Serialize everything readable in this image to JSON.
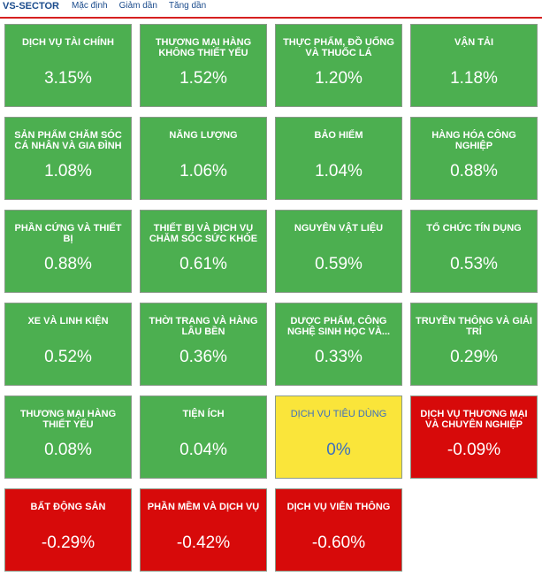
{
  "header": {
    "title": "VS-SECTOR",
    "tabs": [
      "Mặc định",
      "Giảm dần",
      "Tăng dần"
    ]
  },
  "colors": {
    "up": "#4caf50",
    "flat": "#fae53a",
    "down": "#d70a0a",
    "accent_line": "#d62020"
  },
  "sectors": [
    {
      "name": "DỊCH VỤ TÀI CHÍNH",
      "value": "3.15%",
      "status": "up"
    },
    {
      "name": "THƯƠNG MẠI HÀNG KHÔNG THIẾT YẾU",
      "value": "1.52%",
      "status": "up"
    },
    {
      "name": "THỰC PHẨM, ĐỒ UỐNG VÀ THUỐC LÁ",
      "value": "1.20%",
      "status": "up"
    },
    {
      "name": "VẬN TẢI",
      "value": "1.18%",
      "status": "up"
    },
    {
      "name": "SẢN PHẨM CHĂM SÓC CÁ NHÂN VÀ GIA ĐÌNH",
      "value": "1.08%",
      "status": "up"
    },
    {
      "name": "NĂNG LƯỢNG",
      "value": "1.06%",
      "status": "up"
    },
    {
      "name": "BẢO HIỂM",
      "value": "1.04%",
      "status": "up"
    },
    {
      "name": "HÀNG HÓA CÔNG NGHIỆP",
      "value": "0.88%",
      "status": "up"
    },
    {
      "name": "PHẦN CỨNG VÀ THIẾT BỊ",
      "value": "0.88%",
      "status": "up"
    },
    {
      "name": "THIẾT BỊ VÀ DỊCH VỤ CHĂM SÓC SỨC KHỎE",
      "value": "0.61%",
      "status": "up"
    },
    {
      "name": "NGUYÊN VẬT LIỆU",
      "value": "0.59%",
      "status": "up"
    },
    {
      "name": "TỔ CHỨC TÍN DỤNG",
      "value": "0.53%",
      "status": "up"
    },
    {
      "name": "XE VÀ LINH KIỆN",
      "value": "0.52%",
      "status": "up"
    },
    {
      "name": "THỜI TRANG VÀ HÀNG LÂU BỀN",
      "value": "0.36%",
      "status": "up"
    },
    {
      "name": "DƯỢC PHẨM, CÔNG NGHỆ SINH HỌC VÀ...",
      "value": "0.33%",
      "status": "up"
    },
    {
      "name": "TRUYỀN THÔNG VÀ GIẢI TRÍ",
      "value": "0.29%",
      "status": "up"
    },
    {
      "name": "THƯƠNG MẠI HÀNG THIẾT YẾU",
      "value": "0.08%",
      "status": "up"
    },
    {
      "name": "TIỆN ÍCH",
      "value": "0.04%",
      "status": "up"
    },
    {
      "name": "DỊCH VỤ TIÊU DÙNG",
      "value": "0%",
      "status": "flat"
    },
    {
      "name": "DỊCH VỤ THƯƠNG MẠI VÀ CHUYÊN NGHIỆP",
      "value": "-0.09%",
      "status": "down"
    },
    {
      "name": "BẤT ĐỘNG SẢN",
      "value": "-0.29%",
      "status": "down"
    },
    {
      "name": "PHẦN MỀM VÀ DỊCH VỤ",
      "value": "-0.42%",
      "status": "down"
    },
    {
      "name": "DỊCH VỤ VIỄN THÔNG",
      "value": "-0.60%",
      "status": "down"
    }
  ]
}
